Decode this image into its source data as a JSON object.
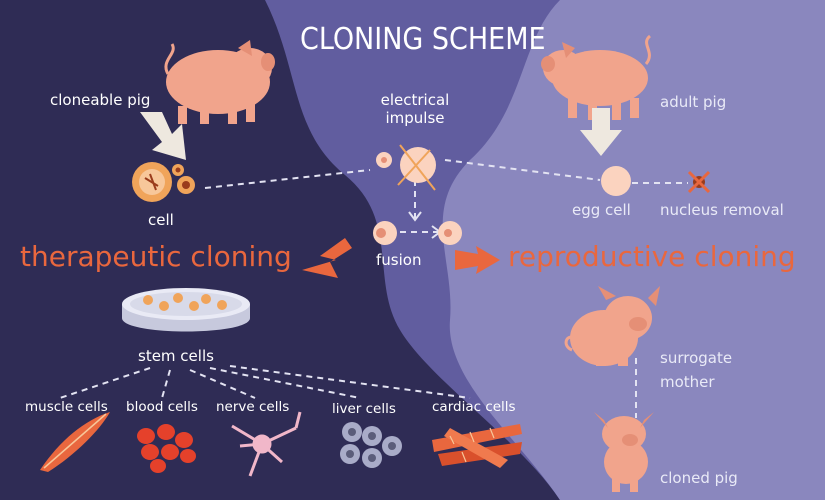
{
  "title": "CLONING SCHEME",
  "left": {
    "cloneable_pig": "cloneable pig",
    "cell": "cell",
    "therapeutic": "therapeutic cloning",
    "stem_cells": "stem cells",
    "cell_types": [
      "muscle cells",
      "blood cells",
      "nerve cells",
      "liver cells",
      "cardiac cells"
    ]
  },
  "center": {
    "electrical_impulse_line1": "electrical",
    "electrical_impulse_line2": "impulse",
    "fusion": "fusion"
  },
  "right": {
    "adult_pig": "adult pig",
    "egg_cell": "egg cell",
    "nucleus_removal": "nucleus removal",
    "reproductive": "reproductive cloning",
    "surrogate_line1": "surrogate",
    "surrogate_line2": "mother",
    "cloned_pig": "cloned pig"
  },
  "colors": {
    "left_bg": "#2f2c55",
    "middle_bg": "#615d9f",
    "right_bg": "#8a87be",
    "accent": "#e9673e",
    "pig": "#f1a48c",
    "cell": "#fbd3bf"
  }
}
